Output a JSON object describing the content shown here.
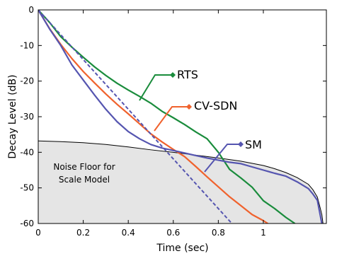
{
  "chart_data": {
    "type": "line",
    "xlabel": "Time (sec)",
    "ylabel": "Decay Level (dB)",
    "xlim": [
      0,
      1.28
    ],
    "ylim": [
      -60,
      0
    ],
    "x_ticks": [
      "0",
      "0.2",
      "0.4",
      "0.6",
      "0.8",
      "1"
    ],
    "y_ticks": [
      "0",
      "-10",
      "-20",
      "-30",
      "-40",
      "-50",
      "-60"
    ],
    "grid": false,
    "series": [
      {
        "name": "RTS",
        "color": "#1a8c3c",
        "style": "solid",
        "x": [
          0,
          0.05,
          0.1,
          0.15,
          0.2,
          0.25,
          0.3,
          0.35,
          0.4,
          0.45,
          0.5,
          0.55,
          0.6,
          0.65,
          0.7,
          0.75,
          0.8,
          0.85,
          0.9,
          0.95,
          1.0,
          1.05,
          1.1,
          1.14
        ],
        "y": [
          0,
          -3.5,
          -7.5,
          -10.5,
          -13.3,
          -16.0,
          -18.4,
          -20.6,
          -22.5,
          -24.3,
          -26.2,
          -28.5,
          -30.3,
          -32.2,
          -34.3,
          -36.2,
          -40.0,
          -44.8,
          -47.2,
          -49.8,
          -53.6,
          -55.8,
          -58.3,
          -60
        ]
      },
      {
        "name": "CV-SDN",
        "color": "#f0622d",
        "style": "solid",
        "x": [
          0,
          0.05,
          0.1,
          0.15,
          0.2,
          0.25,
          0.3,
          0.35,
          0.4,
          0.45,
          0.5,
          0.55,
          0.6,
          0.65,
          0.7,
          0.75,
          0.8,
          0.85,
          0.9,
          0.95,
          1.0,
          1.02
        ],
        "y": [
          0,
          -5.2,
          -9.7,
          -13.7,
          -17.3,
          -20.5,
          -23.6,
          -26.5,
          -29.2,
          -32.0,
          -34.8,
          -37.1,
          -39.2,
          -41.2,
          -44.0,
          -46.9,
          -49.7,
          -52.5,
          -55.0,
          -57.5,
          -59.2,
          -60
        ]
      },
      {
        "name": "SM",
        "color": "#5555b0",
        "style": "solid",
        "x": [
          0,
          0.05,
          0.1,
          0.15,
          0.2,
          0.25,
          0.3,
          0.35,
          0.4,
          0.45,
          0.5,
          0.55,
          0.6,
          0.65,
          0.7,
          0.75,
          0.8,
          0.85,
          0.9,
          0.95,
          1.0,
          1.05,
          1.1,
          1.15,
          1.2,
          1.22,
          1.24,
          1.25,
          1.26
        ],
        "y": [
          0,
          -5.3,
          -10.0,
          -15.5,
          -19.7,
          -23.9,
          -27.9,
          -31.4,
          -34.2,
          -36.2,
          -37.8,
          -38.8,
          -39.5,
          -40.2,
          -40.9,
          -41.6,
          -42.2,
          -42.8,
          -43.2,
          -44.1,
          -45.0,
          -45.9,
          -46.7,
          -48.3,
          -50.2,
          -51.7,
          -53.5,
          -56.8,
          -60
        ]
      },
      {
        "name": "",
        "color": "#5555b0",
        "style": "dashed",
        "x": [
          0,
          0.86
        ],
        "y": [
          0,
          -60
        ]
      }
    ],
    "noise_floor": {
      "label_line1": "Noise Floor for",
      "label_line2": "Scale Model",
      "fill": "#e5e5e5",
      "edge_color": "#000000",
      "x": [
        0,
        0.1,
        0.2,
        0.3,
        0.4,
        0.5,
        0.6,
        0.7,
        0.8,
        0.9,
        1.0,
        1.05,
        1.1,
        1.15,
        1.2,
        1.22,
        1.24,
        1.25,
        1.26,
        1.265
      ],
      "y": [
        -36.8,
        -37.0,
        -37.3,
        -37.8,
        -38.5,
        -39.3,
        -40.0,
        -40.8,
        -41.6,
        -42.5,
        -43.7,
        -44.6,
        -45.7,
        -47.1,
        -49.0,
        -50.5,
        -52.6,
        -55.0,
        -57.5,
        -60
      ]
    }
  }
}
